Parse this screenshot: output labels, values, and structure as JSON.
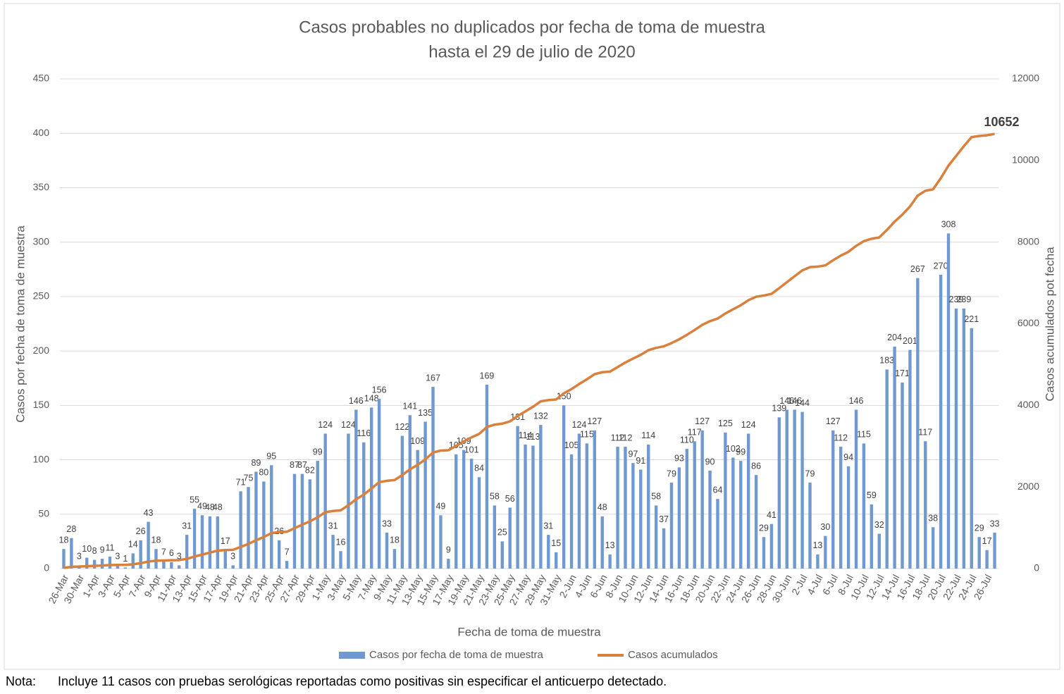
{
  "chart_data": {
    "type": "bar_line",
    "title": "Casos probables no duplicados por fecha de toma de muestra",
    "subtitle": "hasta el 29 de julio de 2020",
    "x_label": "Fecha de toma de muestra",
    "y_label": "Casos por fecha de toma de muestra",
    "y2_label": "Casos acumulados pot fecha",
    "categories": [
      "26-Mar",
      null,
      "30-Mar",
      null,
      "1-Apr",
      null,
      "3-Apr",
      null,
      "5-Apr",
      null,
      "7-Apr",
      null,
      "9-Apr",
      null,
      "11-Apr",
      null,
      "13-Apr",
      null,
      "15-Apr",
      null,
      "17-Apr",
      null,
      "19-Apr",
      null,
      "21-Apr",
      null,
      "23-Apr",
      null,
      "25-Apr",
      null,
      "27-Apr",
      null,
      "29-Apr",
      null,
      "1-May",
      null,
      "3-May",
      null,
      "5-May",
      null,
      "7-May",
      null,
      "9-May",
      null,
      "11-May",
      null,
      "13-May",
      null,
      "15-May",
      null,
      "17-May",
      null,
      "19-May",
      null,
      "21-May",
      null,
      "23-May",
      null,
      "25-May",
      null,
      "27-May",
      null,
      "29-May",
      null,
      "31-May",
      null,
      "2-Jun",
      null,
      "4-Jun",
      null,
      "6-Jun",
      null,
      "8-Jun",
      null,
      "10-Jun",
      null,
      "12-Jun",
      null,
      "14-Jun",
      null,
      "16-Jun",
      null,
      "18-Jun",
      null,
      "20-Jun",
      null,
      "22-Jun",
      null,
      "24-Jun",
      null,
      "26-Jun",
      null,
      "28-Jun",
      null,
      "30-Jun",
      null,
      "2-Jul",
      null,
      "4-Jul",
      null,
      "6-Jul",
      null,
      "8-Jul",
      null,
      "10-Jul",
      null,
      "12-Jul",
      null,
      "14-Jul",
      null,
      "16-Jul",
      null,
      "18-Jul",
      null,
      "20-Jul",
      null,
      "22-Jul",
      null,
      "24-Jul",
      null,
      "26-Jul",
      null
    ],
    "series": [
      {
        "name": "Casos por fecha de toma de muestra",
        "type": "bar",
        "color": "#7099d2",
        "values": [
          18,
          28,
          3,
          10,
          8,
          9,
          11,
          3,
          1,
          14,
          26,
          43,
          18,
          7,
          6,
          3,
          31,
          55,
          49,
          48,
          48,
          17,
          3,
          71,
          75,
          89,
          80,
          95,
          26,
          7,
          87,
          87,
          82,
          99,
          124,
          31,
          16,
          124,
          146,
          116,
          148,
          156,
          33,
          18,
          122,
          141,
          109,
          135,
          167,
          49,
          9,
          105,
          109,
          101,
          84,
          169,
          58,
          25,
          56,
          131,
          114,
          113,
          132,
          31,
          15,
          150,
          105,
          124,
          115,
          127,
          48,
          13,
          112,
          112,
          97,
          91,
          114,
          58,
          37,
          79,
          93,
          110,
          117,
          127,
          90,
          64,
          125,
          102,
          99,
          124,
          86,
          29,
          41,
          139,
          146,
          146,
          144,
          79,
          13,
          30,
          127,
          112,
          94,
          146,
          115,
          59,
          32,
          183,
          204,
          171,
          201,
          267,
          117,
          38,
          270,
          308,
          239,
          239,
          221,
          29,
          17,
          33
        ]
      },
      {
        "name": "Casos acumulados",
        "type": "line",
        "axis": "y2",
        "color": "#d8803c",
        "values": [
          18,
          46,
          49,
          59,
          67,
          76,
          87,
          90,
          91,
          105,
          131,
          174,
          192,
          199,
          205,
          208,
          239,
          294,
          343,
          391,
          439,
          456,
          459,
          530,
          605,
          694,
          774,
          869,
          895,
          902,
          989,
          1076,
          1158,
          1257,
          1381,
          1412,
          1428,
          1552,
          1698,
          1814,
          1962,
          2118,
          2151,
          2169,
          2291,
          2432,
          2541,
          2676,
          2843,
          2892,
          2901,
          3006,
          3115,
          3216,
          3300,
          3469,
          3527,
          3552,
          3608,
          3739,
          3853,
          3966,
          4098,
          4129,
          4144,
          4294,
          4399,
          4523,
          4638,
          4765,
          4813,
          4826,
          4938,
          5050,
          5147,
          5238,
          5352,
          5410,
          5447,
          5526,
          5619,
          5729,
          5846,
          5973,
          6063,
          6127,
          6252,
          6354,
          6453,
          6577,
          6663,
          6692,
          6733,
          6872,
          7018,
          7164,
          7308,
          7387,
          7400,
          7430,
          7557,
          7669,
          7763,
          7909,
          8024,
          8083,
          8115,
          8298,
          8502,
          8673,
          8874,
          9141,
          9258,
          9296,
          9566,
          9874,
          10113,
          10352,
          10573,
          10602,
          10619,
          10652
        ]
      }
    ],
    "ylim": [
      0,
      450
    ],
    "yticks": [
      0,
      50,
      100,
      150,
      200,
      250,
      300,
      350,
      400,
      450
    ],
    "y2lim": [
      0,
      12000
    ],
    "y2ticks": [
      0,
      2000,
      4000,
      6000,
      8000,
      10000,
      12000
    ],
    "grid": true,
    "legend": "bottom"
  },
  "note": {
    "label": "Nota:",
    "text": "Incluye 11 casos con pruebas serológicas reportadas como positivas sin especificar el anticuerpo detectado."
  }
}
